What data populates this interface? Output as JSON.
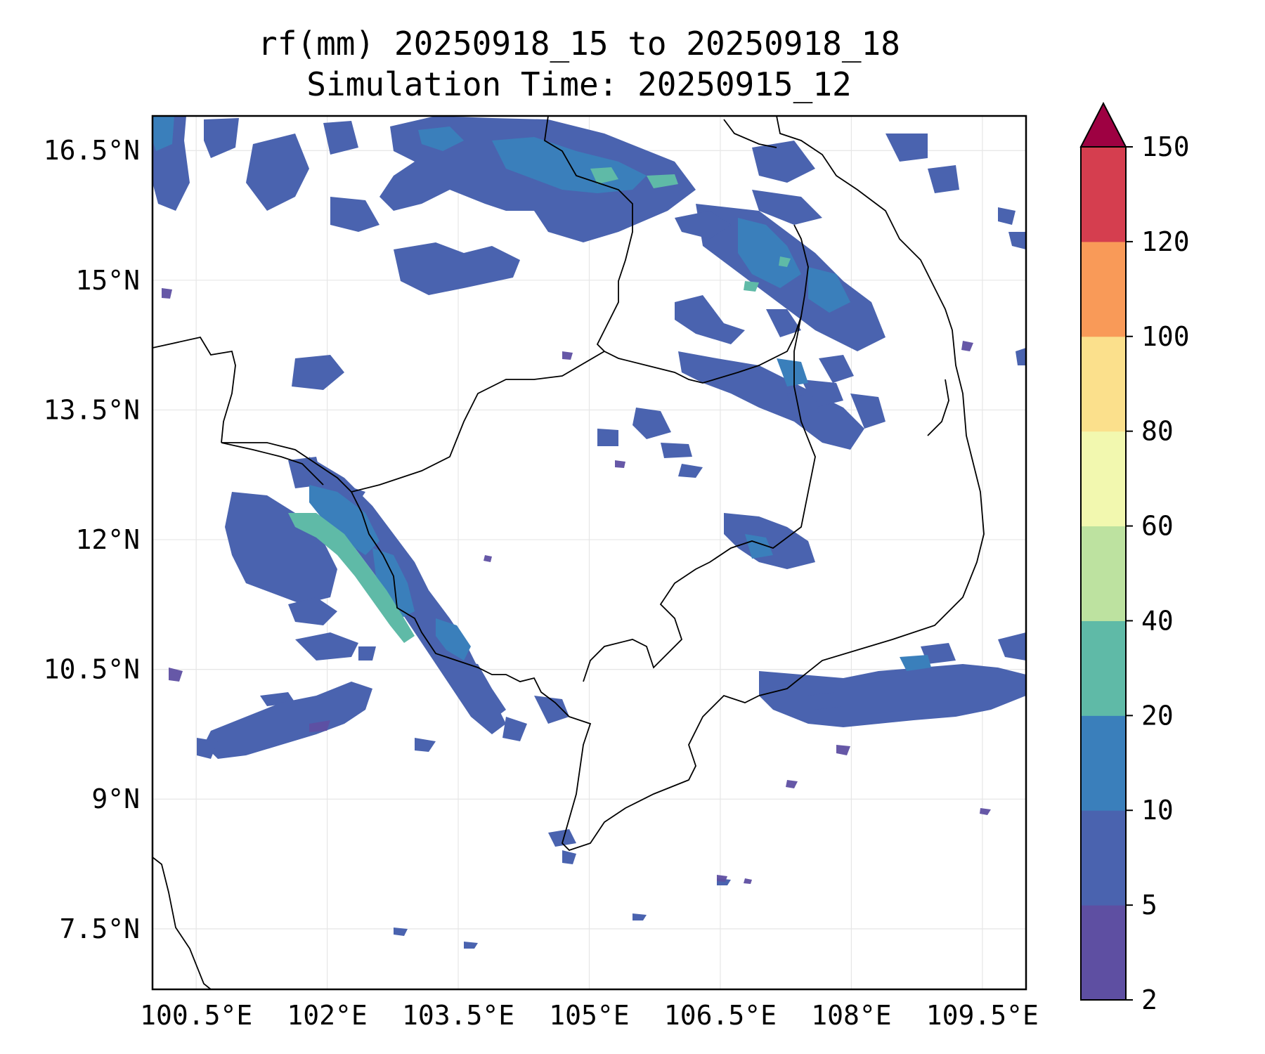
{
  "title_line1": "rf(mm) 20250918_15 to 20250918_18",
  "title_line2": "Simulation Time: 20250915_12",
  "map": {
    "lon_range": [
      100.0,
      110.0
    ],
    "lat_range": [
      6.8,
      16.9
    ],
    "lon_ticks": [
      {
        "value": 100.5,
        "label": "100.5°E"
      },
      {
        "value": 102.0,
        "label": "102°E"
      },
      {
        "value": 103.5,
        "label": "103.5°E"
      },
      {
        "value": 105.0,
        "label": "105°E"
      },
      {
        "value": 106.5,
        "label": "106.5°E"
      },
      {
        "value": 108.0,
        "label": "108°E"
      },
      {
        "value": 109.5,
        "label": "109.5°E"
      }
    ],
    "lat_ticks": [
      {
        "value": 16.5,
        "label": "16.5°N"
      },
      {
        "value": 15.0,
        "label": "15°N"
      },
      {
        "value": 13.5,
        "label": "13.5°N"
      },
      {
        "value": 12.0,
        "label": "12°N"
      },
      {
        "value": 10.5,
        "label": "10.5°N"
      },
      {
        "value": 9.0,
        "label": "9°N"
      },
      {
        "value": 7.5,
        "label": "7.5°N"
      }
    ],
    "grid": true,
    "colors": {
      "frame": "#000000",
      "grid": "#e6e6e6",
      "coast": "#000000"
    }
  },
  "colorbar": {
    "extend": "max",
    "levels": [
      {
        "from": 2,
        "to": 5,
        "color": "#5e4fa2"
      },
      {
        "from": 5,
        "to": 10,
        "color": "#4a63af"
      },
      {
        "from": 10,
        "to": 20,
        "color": "#3a7fbb"
      },
      {
        "from": 20,
        "to": 40,
        "color": "#5fbaa7"
      },
      {
        "from": 40,
        "to": 60,
        "color": "#bde2a0"
      },
      {
        "from": 60,
        "to": 80,
        "color": "#f2f8af"
      },
      {
        "from": 80,
        "to": 100,
        "color": "#fbe08c"
      },
      {
        "from": 100,
        "to": 120,
        "color": "#f99a58"
      },
      {
        "from": 120,
        "to": 150,
        "color": "#d53e4f"
      }
    ],
    "over_color": "#9e0142",
    "tick_labels": [
      "2",
      "5",
      "10",
      "20",
      "40",
      "60",
      "80",
      "100",
      "120",
      "150"
    ]
  }
}
